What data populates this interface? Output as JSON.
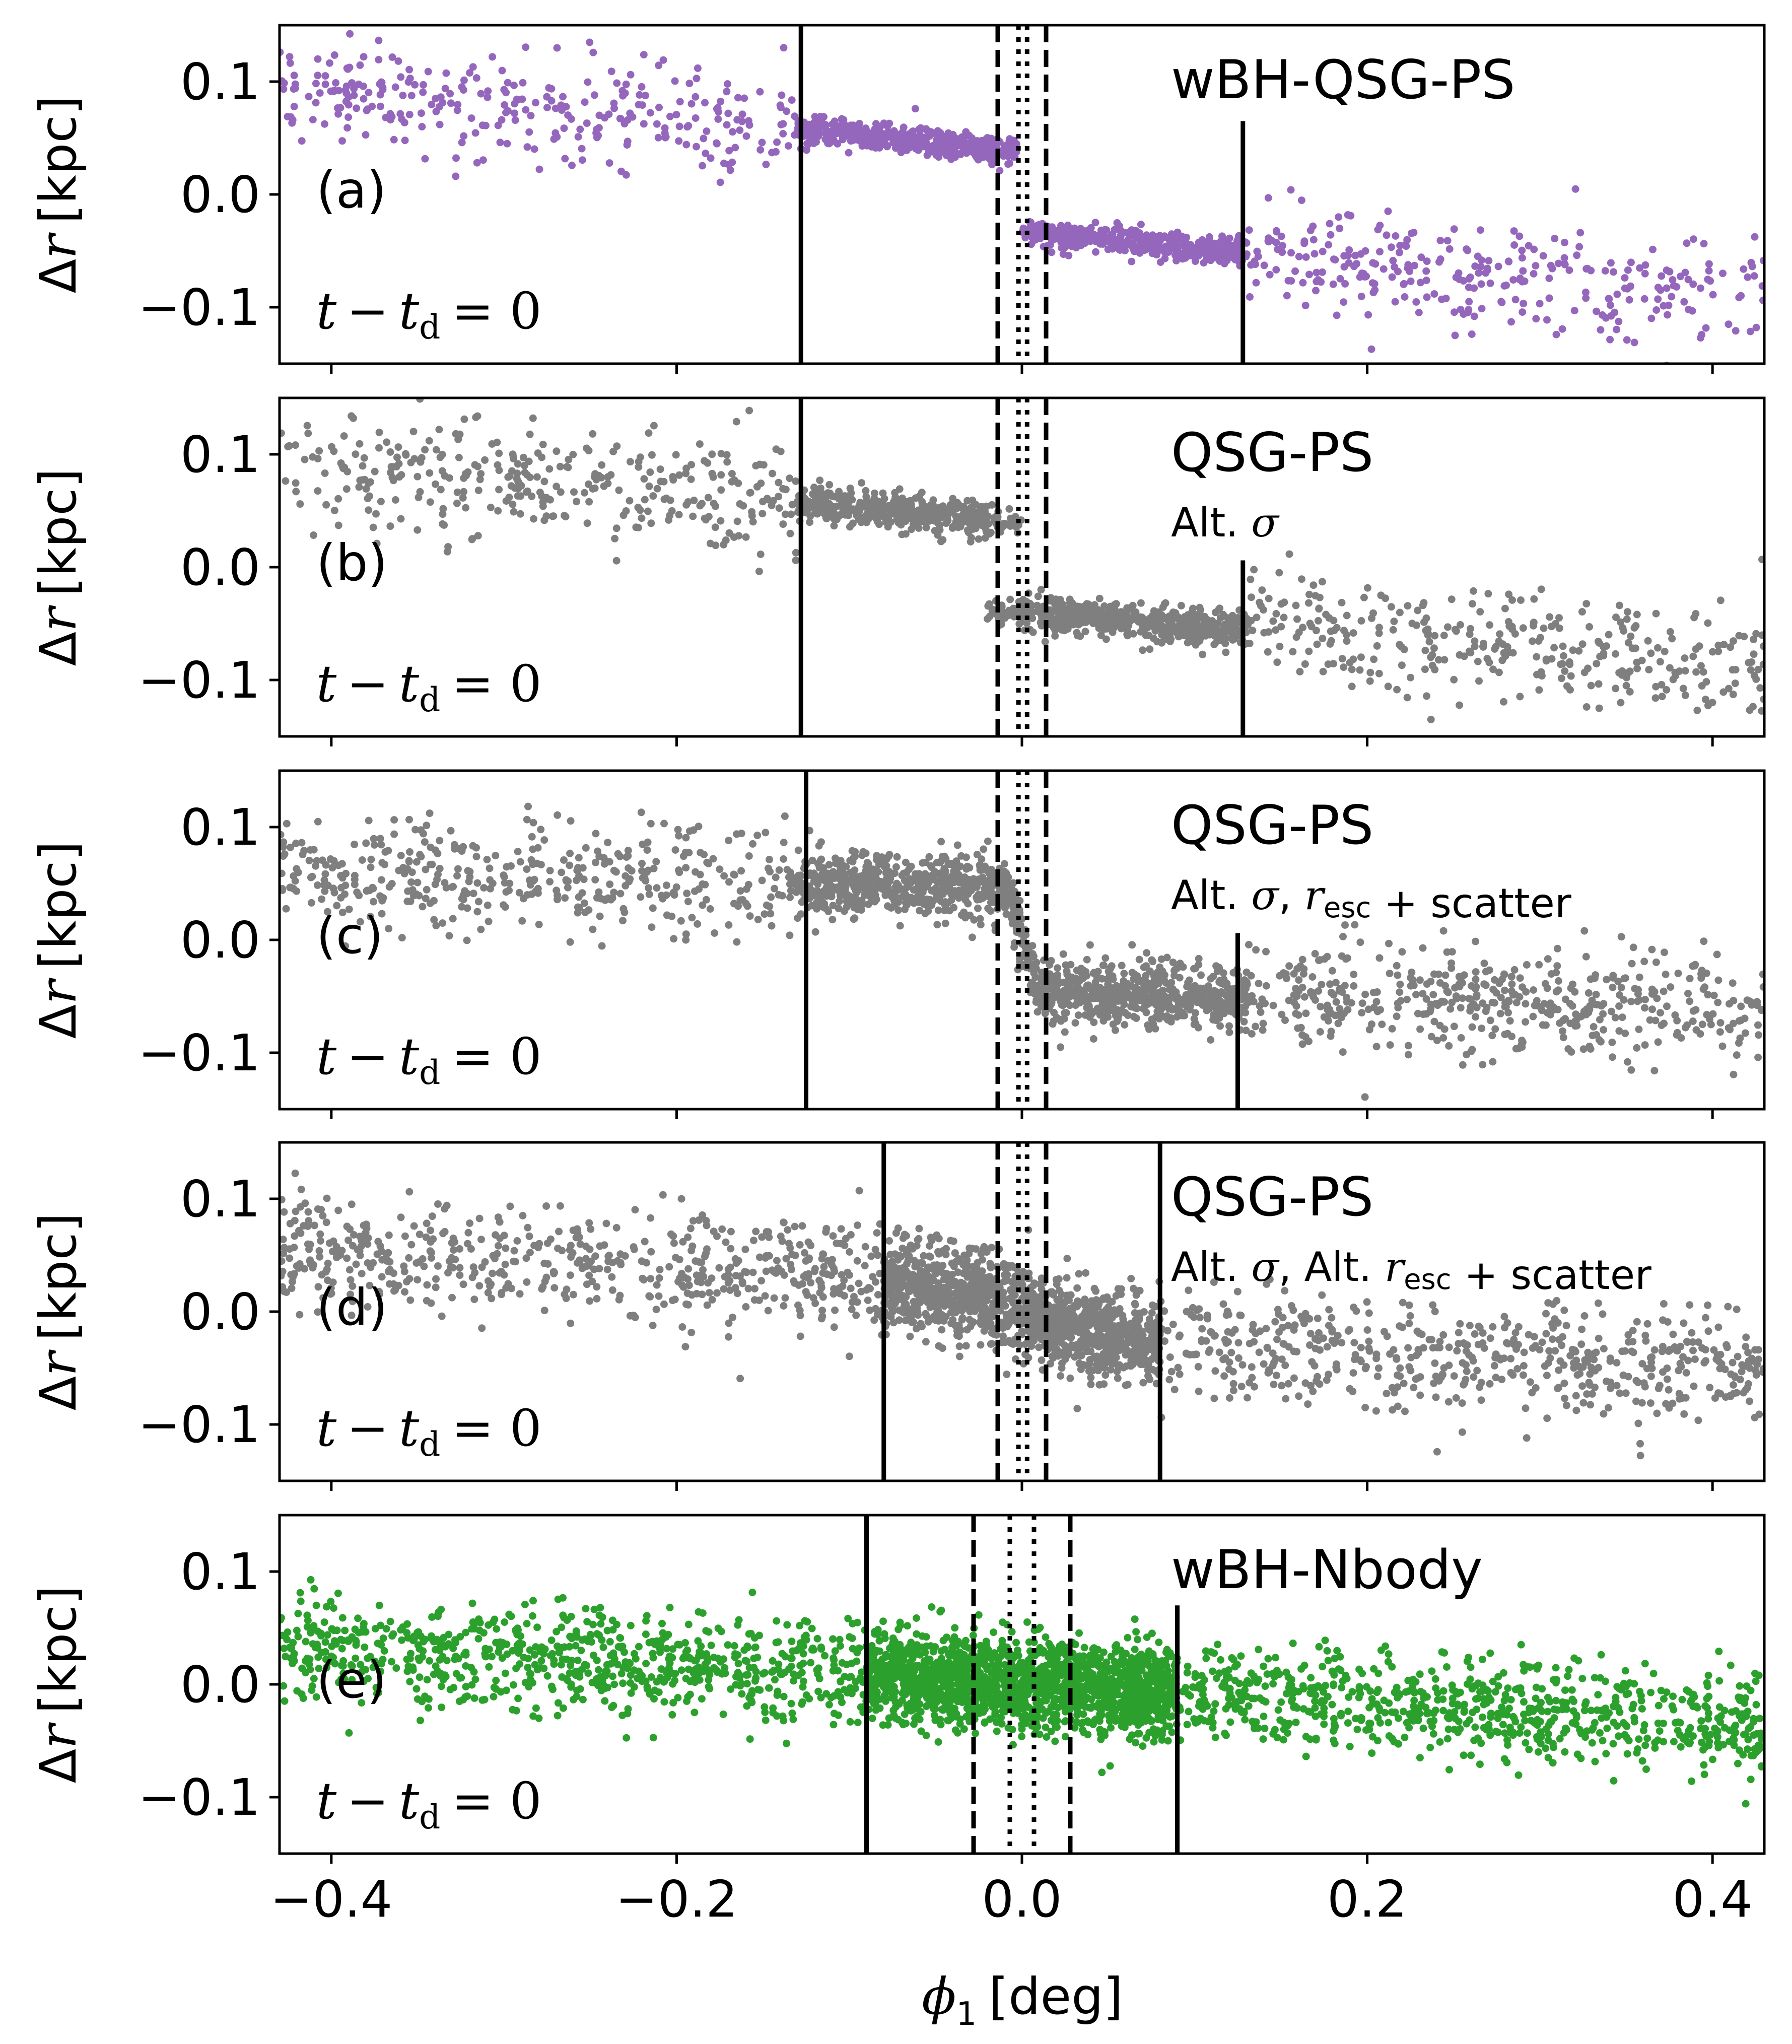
{
  "figure": {
    "xlabel": "ϕ1 [deg]",
    "xlabel_symbol": "ϕ",
    "xlabel_subscript": "1",
    "xlabel_unit": "[deg]",
    "ylabel": "Δr [kpc]",
    "ylabel_delta": "Δ",
    "ylabel_symbol": "r",
    "ylabel_unit": "[kpc]",
    "time_label_left": "t",
    "time_label_op": "−",
    "time_label_t": "t",
    "time_label_sub": "d",
    "time_label_eq": "= 0"
  },
  "chart_data": [
    {
      "type": "scatter",
      "panel_label": "(a)",
      "title": "wBH-QSG-PS",
      "subtitle": "",
      "color": "#9467bd",
      "xlim": [
        -0.43,
        0.43
      ],
      "ylim": [
        -0.15,
        0.15
      ],
      "xticks": [
        -0.4,
        -0.2,
        0.0,
        0.2,
        0.4
      ],
      "xtick_labels": [
        "−0.4",
        "−0.2",
        "0.0",
        "0.2",
        "0.4"
      ],
      "yticks": [
        0.1,
        0.0,
        -0.1
      ],
      "ytick_labels": [
        "0.1",
        "0.0",
        "−0.1"
      ],
      "show_xtick_labels": false,
      "vlines": [
        {
          "x": -0.128,
          "style": "solid",
          "ymax": 1.0
        },
        {
          "x": 0.128,
          "style": "solid",
          "ymin_val": -0.15,
          "ymax_val": 0.065
        },
        {
          "x": -0.014,
          "style": "dashed"
        },
        {
          "x": 0.014,
          "style": "dashed"
        },
        {
          "x": -0.002,
          "style": "dotted"
        },
        {
          "x": 0.003,
          "style": "dotted"
        }
      ],
      "scatter_model": {
        "kind": "split",
        "n": 1500,
        "gap": [
          -0.005,
          -0.002
        ],
        "left_start": 0.09,
        "left_end": 0.038,
        "right_start": -0.032,
        "right_end": -0.09,
        "sd_far": 0.024,
        "sd_near": 0.006,
        "dense_half_width": 0.13
      }
    },
    {
      "type": "scatter",
      "panel_label": "(b)",
      "title": "QSG-PS",
      "subtitle": "Alt. σ",
      "color": "#7f7f7f",
      "xlim": [
        -0.43,
        0.43
      ],
      "ylim": [
        -0.15,
        0.15
      ],
      "xticks": [
        -0.4,
        -0.2,
        0.0,
        0.2,
        0.4
      ],
      "xtick_labels": [
        "−0.4",
        "−0.2",
        "0.0",
        "0.2",
        "0.4"
      ],
      "yticks": [
        0.1,
        0.0,
        -0.1
      ],
      "ytick_labels": [
        "0.1",
        "0.0",
        "−0.1"
      ],
      "show_xtick_labels": false,
      "vlines": [
        {
          "x": -0.128,
          "style": "solid"
        },
        {
          "x": 0.128,
          "style": "solid",
          "ymin_val": -0.15,
          "ymax_val": 0.006
        },
        {
          "x": -0.014,
          "style": "dashed"
        },
        {
          "x": 0.014,
          "style": "dashed"
        },
        {
          "x": -0.002,
          "style": "dotted"
        },
        {
          "x": 0.003,
          "style": "dotted"
        }
      ],
      "scatter_model": {
        "kind": "split",
        "n": 1700,
        "gap": [
          0.018,
          -0.02
        ],
        "left_start": 0.085,
        "left_end": 0.04,
        "right_start": -0.04,
        "right_end": -0.085,
        "sd_far": 0.025,
        "sd_near": 0.008,
        "dense_half_width": 0.13
      }
    },
    {
      "type": "scatter",
      "panel_label": "(c)",
      "title": "QSG-PS",
      "subtitle": "Alt. σ, r_esc + scatter",
      "color": "#7f7f7f",
      "xlim": [
        -0.43,
        0.43
      ],
      "ylim": [
        -0.15,
        0.15
      ],
      "xticks": [
        -0.4,
        -0.2,
        0.0,
        0.2,
        0.4
      ],
      "xtick_labels": [
        "−0.4",
        "−0.2",
        "0.0",
        "0.2",
        "0.4"
      ],
      "yticks": [
        0.1,
        0.0,
        -0.1
      ],
      "ytick_labels": [
        "0.1",
        "0.0",
        "−0.1"
      ],
      "show_xtick_labels": false,
      "vlines": [
        {
          "x": -0.125,
          "style": "solid"
        },
        {
          "x": 0.125,
          "style": "solid",
          "ymin_val": -0.15,
          "ymax_val": 0.006
        },
        {
          "x": -0.014,
          "style": "dashed"
        },
        {
          "x": 0.014,
          "style": "dashed"
        },
        {
          "x": -0.002,
          "style": "dotted"
        },
        {
          "x": 0.003,
          "style": "dotted"
        }
      ],
      "scatter_model": {
        "kind": "smooth",
        "n": 2200,
        "amp": 0.048,
        "trend": 0.05,
        "width": 0.008,
        "sd_far": 0.025,
        "sd_near": 0.014,
        "dense_half_width": 0.13
      }
    },
    {
      "type": "scatter",
      "panel_label": "(d)",
      "title": "QSG-PS",
      "subtitle": "Alt. σ, Alt. r_esc + scatter",
      "color": "#7f7f7f",
      "xlim": [
        -0.43,
        0.43
      ],
      "ylim": [
        -0.15,
        0.15
      ],
      "xticks": [
        -0.4,
        -0.2,
        0.0,
        0.2,
        0.4
      ],
      "xtick_labels": [
        "−0.4",
        "−0.2",
        "0.0",
        "0.2",
        "0.4"
      ],
      "yticks": [
        0.1,
        0.0,
        -0.1
      ],
      "ytick_labels": [
        "0.1",
        "0.0",
        "−0.1"
      ],
      "show_xtick_labels": false,
      "vlines": [
        {
          "x": -0.08,
          "style": "solid"
        },
        {
          "x": 0.08,
          "style": "solid"
        },
        {
          "x": -0.014,
          "style": "dashed"
        },
        {
          "x": 0.014,
          "style": "dashed"
        },
        {
          "x": -0.002,
          "style": "dotted"
        },
        {
          "x": 0.003,
          "style": "dotted"
        }
      ],
      "scatter_model": {
        "kind": "smooth",
        "n": 2400,
        "amp": 0.02,
        "trend": 0.17,
        "width": 0.04,
        "sd_far": 0.025,
        "sd_near": 0.02,
        "dense_half_width": 0.08
      }
    },
    {
      "type": "scatter",
      "panel_label": "(e)",
      "title": "wBH-Nbody",
      "subtitle": "",
      "color": "#2ca02c",
      "xlim": [
        -0.43,
        0.43
      ],
      "ylim": [
        -0.15,
        0.15
      ],
      "xticks": [
        -0.4,
        -0.2,
        0.0,
        0.2,
        0.4
      ],
      "xtick_labels": [
        "−0.4",
        "−0.2",
        "0.0",
        "0.2",
        "0.4"
      ],
      "yticks": [
        0.1,
        0.0,
        -0.1
      ],
      "ytick_labels": [
        "0.1",
        "0.0",
        "−0.1"
      ],
      "show_xtick_labels": true,
      "vlines": [
        {
          "x": -0.09,
          "style": "solid"
        },
        {
          "x": 0.09,
          "style": "solid",
          "ymin_val": -0.15,
          "ymax_val": 0.07
        },
        {
          "x": -0.028,
          "style": "dashed"
        },
        {
          "x": 0.028,
          "style": "dashed"
        },
        {
          "x": -0.007,
          "style": "dotted"
        },
        {
          "x": 0.007,
          "style": "dotted"
        }
      ],
      "scatter_model": {
        "kind": "smooth",
        "n": 3200,
        "amp": 0.0,
        "trend": 0.165,
        "width": 0.05,
        "sd_far": 0.022,
        "sd_near": 0.02,
        "dense_half_width": 0.09
      }
    }
  ]
}
